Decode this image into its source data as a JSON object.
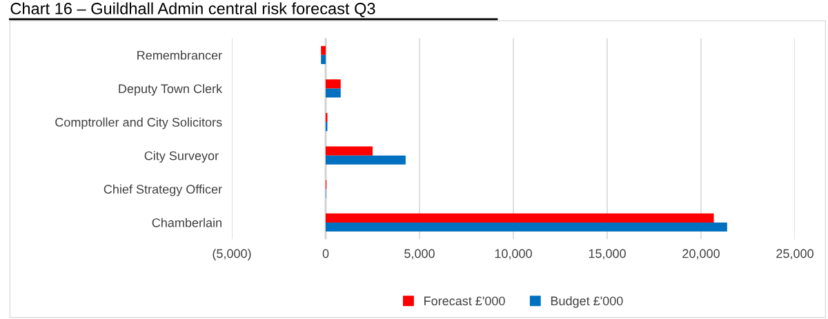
{
  "chart_data": {
    "type": "bar",
    "orientation": "horizontal",
    "title": "Chart 16 – Guildhall Admin central risk forecast Q3",
    "categories": [
      "Remembrancer",
      "Deputy Town Clerk",
      "Comptroller and City Solicitors",
      "City Surveyor ",
      "Chief Strategy Officer",
      "Chamberlain"
    ],
    "series": [
      {
        "name": "Forecast £'000",
        "color": "#ff0000",
        "values": [
          -250,
          800,
          90,
          2500,
          40,
          20680
        ]
      },
      {
        "name": "Budget £'000",
        "color": "#0070c0",
        "values": [
          -250,
          800,
          90,
          4260,
          20,
          21390
        ]
      }
    ],
    "xlim": [
      -5000,
      25000
    ],
    "xticks": [
      {
        "value": -5000,
        "label": "(5,000)"
      },
      0,
      {
        "value": 5000,
        "label": "5,000"
      },
      {
        "value": 10000,
        "label": "10,000"
      },
      {
        "value": 15000,
        "label": "15,000"
      },
      {
        "value": 20000,
        "label": "20,000"
      },
      {
        "value": 25000,
        "label": "25,000"
      }
    ],
    "grid": "x",
    "legend": "bottom"
  }
}
